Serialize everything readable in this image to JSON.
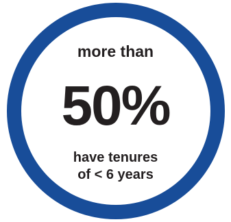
{
  "stat": {
    "lead": "more than",
    "value": "50%",
    "caption_line1": "have tenures",
    "caption_line2": "of < 6 years"
  },
  "colors": {
    "ring": "#184d99",
    "text": "#231f20",
    "background": "#ffffff"
  }
}
